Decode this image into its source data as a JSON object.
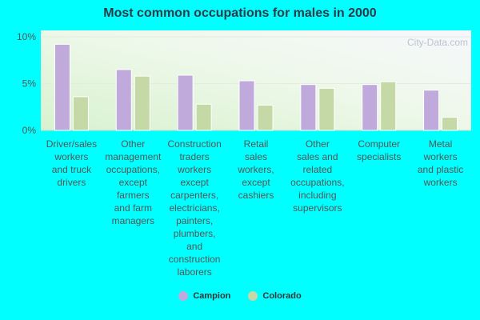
{
  "chart_data": {
    "type": "bar",
    "title": "Most common occupations for males in 2000",
    "watermark": "City-Data.com",
    "y_ticks": [
      "10%",
      "5%",
      "0%"
    ],
    "ylim": [
      0,
      10
    ],
    "grid": true,
    "legend_position": "bottom",
    "categories": [
      [
        "Driver/sales",
        "workers",
        "and truck",
        "drivers"
      ],
      [
        "Other",
        "management",
        "occupations,",
        "except",
        "farmers",
        "and farm",
        "managers"
      ],
      [
        "Construction",
        "traders",
        "workers",
        "except",
        "carpenters,",
        "electricians,",
        "painters,",
        "plumbers,",
        "and",
        "construction",
        "laborers"
      ],
      [
        "Retail",
        "sales",
        "workers,",
        "except",
        "cashiers"
      ],
      [
        "Other",
        "sales and",
        "related",
        "occupations,",
        "including",
        "supervisors"
      ],
      [
        "Computer",
        "specialists"
      ],
      [
        "Metal",
        "workers",
        "and plastic",
        "workers"
      ]
    ],
    "series": [
      {
        "name": "Campion",
        "color": "#c0aadc",
        "values": [
          9.2,
          6.5,
          5.9,
          5.3,
          4.9,
          4.9,
          4.3
        ]
      },
      {
        "name": "Colorado",
        "color": "#c4d9a5",
        "values": [
          3.6,
          5.8,
          2.8,
          2.7,
          4.5,
          5.2,
          1.4
        ]
      }
    ]
  }
}
